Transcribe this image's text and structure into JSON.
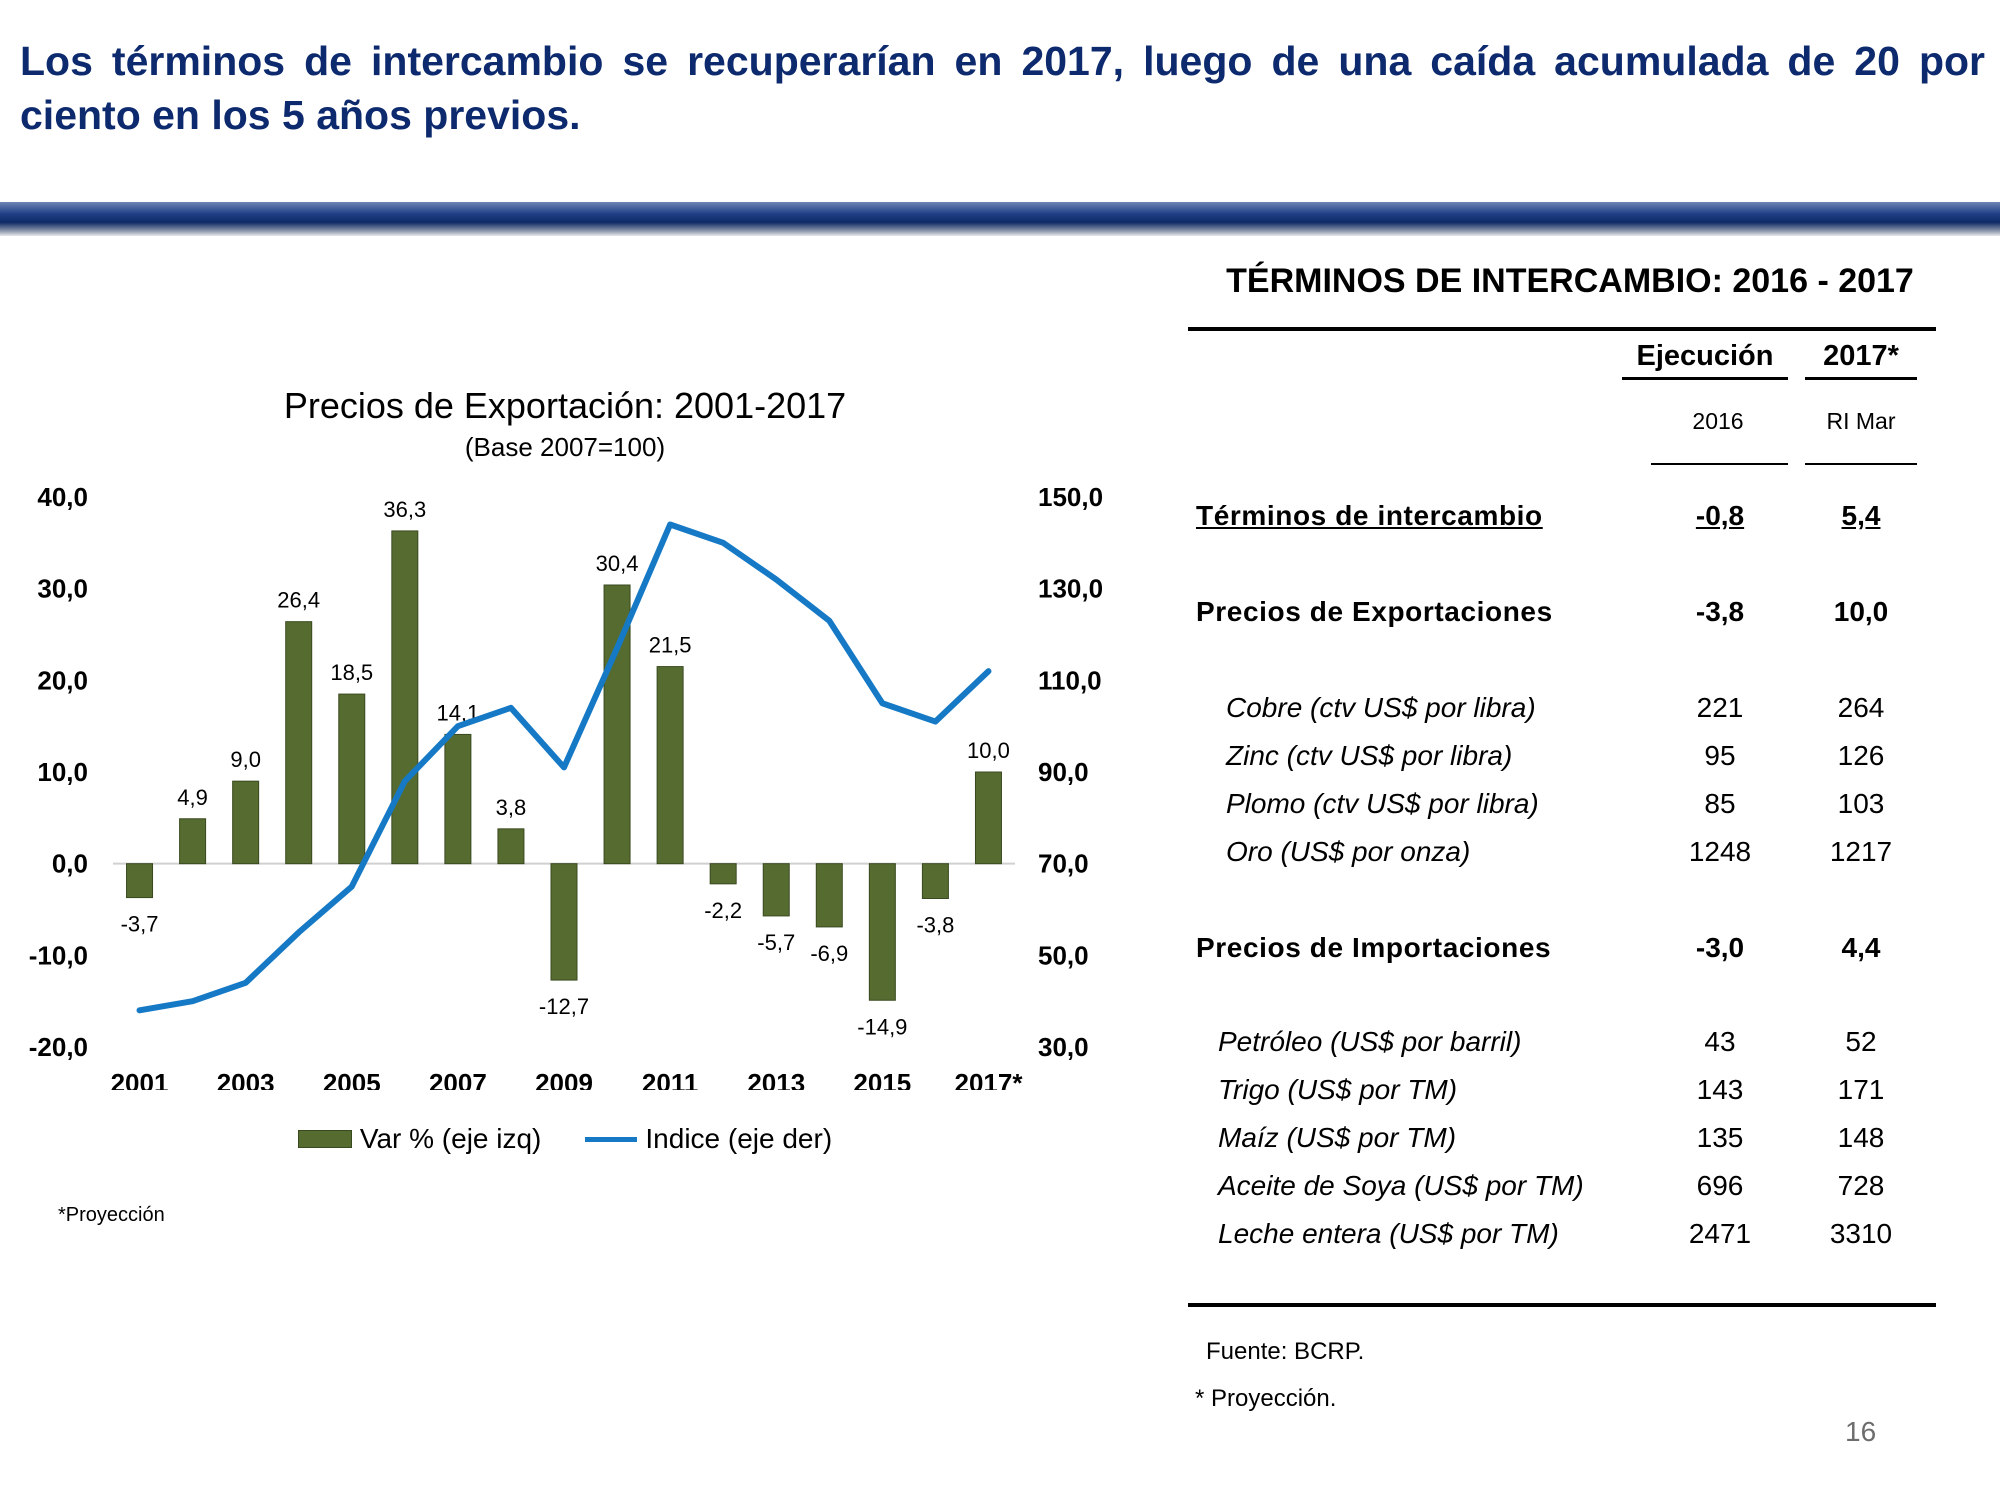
{
  "slide_title": "Los términos de intercambio se recuperarían en 2017, luego de una caída acumulada de 20 por ciento en los 5 años previos.",
  "page_number": "16",
  "colors": {
    "title": "#0d2a6e",
    "bars": "#556b2f",
    "line": "#1679c6"
  },
  "chart_data": {
    "type": "bar",
    "title": "Precios de Exportación: 2001-2017",
    "subtitle": "(Base 2007=100)",
    "categories": [
      "2001",
      "2002",
      "2003",
      "2004",
      "2005",
      "2006",
      "2007",
      "2008",
      "2009",
      "2010",
      "2011",
      "2012",
      "2013",
      "2014",
      "2015",
      "2016",
      "2017*"
    ],
    "x_tick_labels": [
      "2001",
      "2003",
      "2005",
      "2007",
      "2009",
      "2011",
      "2013",
      "2015",
      "2017*"
    ],
    "series": [
      {
        "name": "Var % (eje izq)",
        "type": "bar",
        "axis": "left",
        "values": [
          -3.7,
          4.9,
          9.0,
          26.4,
          18.5,
          36.3,
          14.1,
          3.8,
          -12.7,
          30.4,
          21.5,
          -2.2,
          -5.7,
          -6.9,
          -14.9,
          -3.8,
          10.0
        ],
        "labels": [
          "-3,7",
          "4,9",
          "9,0",
          "26,4",
          "18,5",
          "36,3",
          "14,1",
          "3,8",
          "-12,7",
          "30,4",
          "21,5",
          "-2,2",
          "-5,7",
          "-6,9",
          "-14,9",
          "-3,8",
          "10,0"
        ]
      },
      {
        "name": "Indice (eje der)",
        "type": "line",
        "axis": "right",
        "values": [
          38,
          40,
          44,
          55,
          65,
          88,
          100,
          104,
          91,
          117,
          144,
          140,
          132,
          123,
          105,
          101,
          112
        ]
      }
    ],
    "left_axis": {
      "ylim": [
        -20,
        40
      ],
      "ticks": [
        "40,0",
        "30,0",
        "20,0",
        "10,0",
        "0,0",
        "-10,0",
        "-20,0"
      ]
    },
    "right_axis": {
      "ylim": [
        30,
        150
      ],
      "ticks": [
        "150,0",
        "130,0",
        "110,0",
        "90,0",
        "70,0",
        "50,0",
        "30,0"
      ]
    },
    "legend_position": "bottom",
    "grid": false
  },
  "chart_footnote": "*Proyección",
  "table": {
    "title": "TÉRMINOS DE INTERCAMBIO: 2016 - 2017",
    "col1_header": "Ejecución",
    "col1_sub": "2016",
    "col2_header": "2017*",
    "col2_sub": "RI Mar",
    "rows": [
      {
        "label": "Términos de intercambio",
        "v2016": "-0,8",
        "v2017": "5,4"
      },
      {
        "label": "Precios de Exportaciones",
        "v2016": "-3,8",
        "v2017": "10,0"
      },
      {
        "label": "Cobre (ctv US$ por libra)",
        "v2016": "221",
        "v2017": "264"
      },
      {
        "label": "Zinc (ctv US$ por libra)",
        "v2016": "95",
        "v2017": "126"
      },
      {
        "label": "Plomo (ctv US$ por libra)",
        "v2016": "85",
        "v2017": "103"
      },
      {
        "label": "Oro (US$ por onza)",
        "v2016": "1248",
        "v2017": "1217"
      },
      {
        "label": "Precios de Importaciones",
        "v2016": "-3,0",
        "v2017": "4,4"
      },
      {
        "label": "Petróleo (US$ por barril)",
        "v2016": "43",
        "v2017": "52"
      },
      {
        "label": "Trigo (US$ por TM)",
        "v2016": "143",
        "v2017": "171"
      },
      {
        "label": "Maíz (US$ por TM)",
        "v2016": "135",
        "v2017": "148"
      },
      {
        "label": "Aceite de Soya (US$ por TM)",
        "v2016": "696",
        "v2017": "728"
      },
      {
        "label": "Leche entera (US$ por TM)",
        "v2016": "2471",
        "v2017": "3310"
      }
    ],
    "source": "Fuente: BCRP.",
    "footnote": "* Proyección."
  }
}
